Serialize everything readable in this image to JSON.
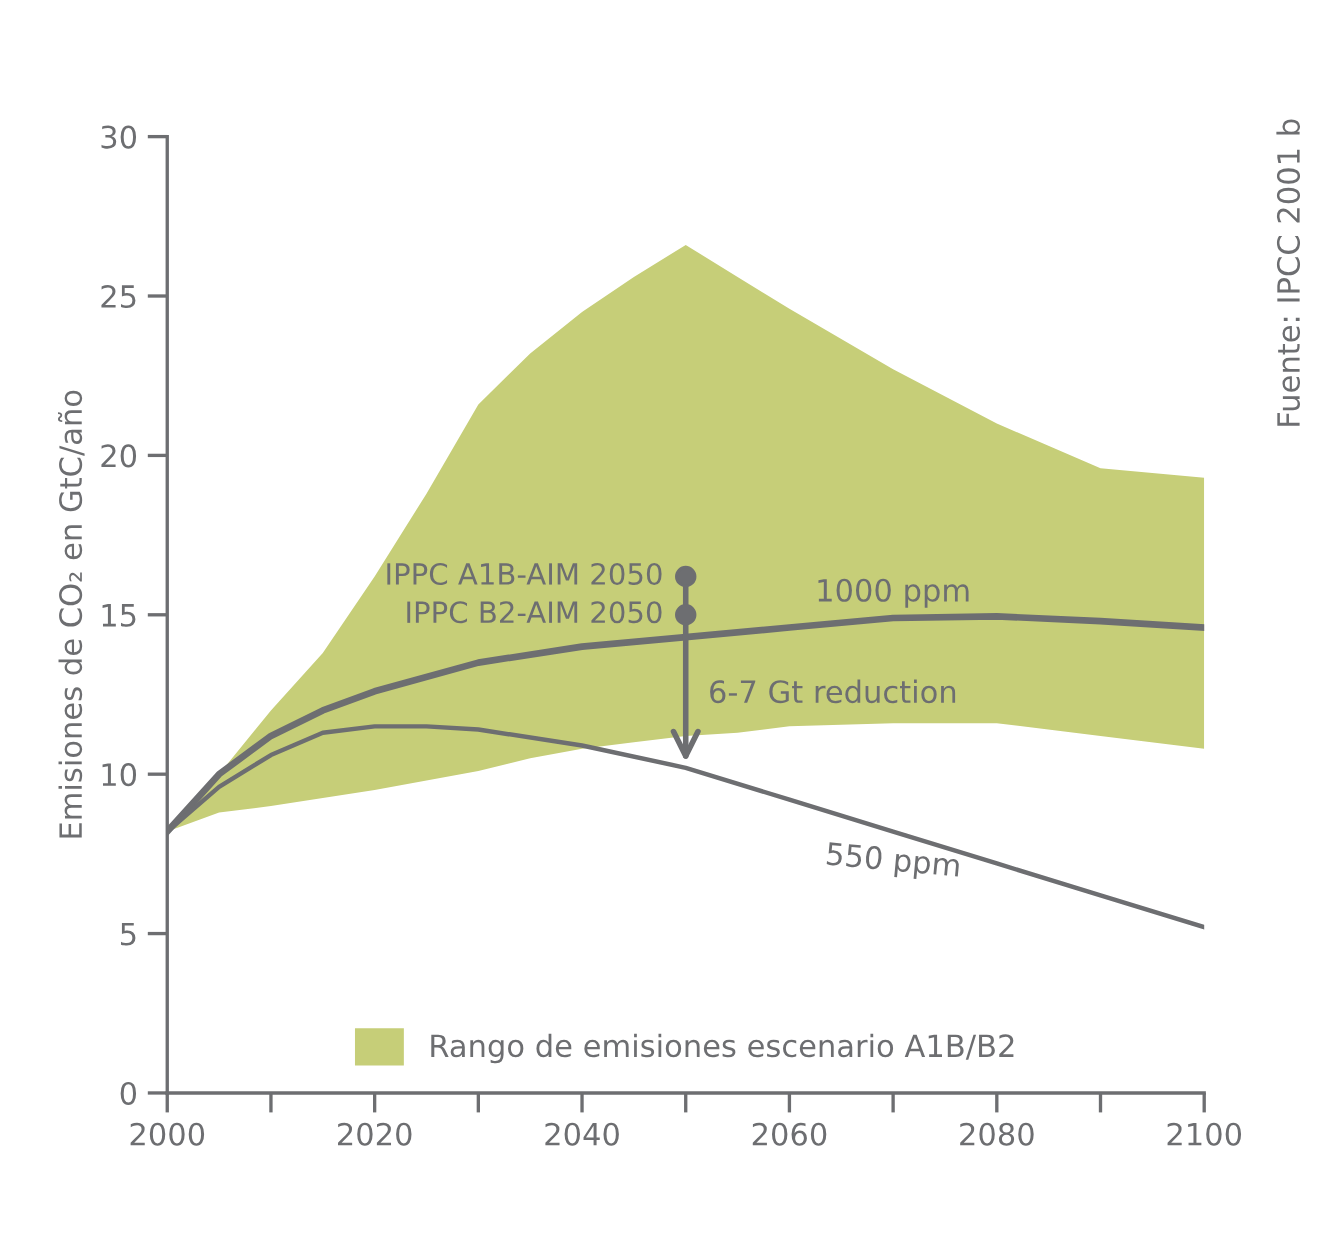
{
  "chart_data": {
    "type": "line",
    "ylabel": "Emisiones de CO₂ en GtC/año",
    "xlim": [
      2000,
      2100
    ],
    "ylim": [
      0,
      30
    ],
    "xticks": [
      2000,
      {
        "value": 2010,
        "label": null
      },
      2020,
      {
        "value": 2030,
        "label": null
      },
      2040,
      {
        "value": 2050,
        "label": null
      },
      2060,
      {
        "value": 2070,
        "label": null
      },
      2080,
      {
        "value": 2090,
        "label": null
      },
      2100
    ],
    "yticks": [
      0,
      5,
      10,
      15,
      20,
      25,
      30
    ],
    "grid": false,
    "legend": "bottom",
    "series": [
      {
        "name": "Rango de emisiones escenario A1B/B2",
        "type": "area",
        "color": "#c6ce78",
        "x": [
          2000,
          2005,
          2010,
          2015,
          2020,
          2025,
          2030,
          2035,
          2040,
          2045,
          2050,
          2055,
          2060,
          2070,
          2080,
          2090,
          2100
        ],
        "values": [
          null,
          null,
          null,
          null,
          null,
          null,
          null,
          null,
          null,
          null,
          null,
          null,
          null,
          null,
          null,
          null,
          null
        ],
        "upper": [
          8.2,
          10.0,
          12.0,
          13.8,
          16.2,
          18.8,
          21.6,
          23.2,
          24.5,
          25.6,
          26.6,
          25.6,
          24.6,
          22.7,
          21.0,
          19.6,
          19.3
        ],
        "lower": [
          8.2,
          8.8,
          9.0,
          9.25,
          9.5,
          9.8,
          10.1,
          10.5,
          10.8,
          11.0,
          11.2,
          11.3,
          11.5,
          11.6,
          11.6,
          11.2,
          10.8
        ]
      },
      {
        "name": "1000 ppm",
        "color": "#6d6e71",
        "x": [
          2000,
          2005,
          2010,
          2015,
          2020,
          2030,
          2040,
          2050,
          2060,
          2070,
          2080,
          2090,
          2100
        ],
        "values": [
          8.2,
          10.0,
          11.2,
          12.0,
          12.6,
          13.5,
          14.0,
          14.3,
          14.6,
          14.9,
          14.95,
          14.8,
          14.6
        ]
      },
      {
        "name": "550 ppm",
        "color": "#6d6e71",
        "x": [
          2000,
          2005,
          2010,
          2015,
          2020,
          2025,
          2030,
          2040,
          2050,
          2060,
          2070,
          2080,
          2090,
          2100
        ],
        "values": [
          8.2,
          9.6,
          10.6,
          11.3,
          11.5,
          11.5,
          11.4,
          10.9,
          10.2,
          9.2,
          8.2,
          7.2,
          6.2,
          5.2
        ]
      },
      {
        "type": "scatter",
        "color": "#6d6e71",
        "x": [
          2050,
          2050
        ],
        "values": [
          16.2,
          15.0
        ]
      }
    ],
    "annotations": [
      "IPPC A1B-AIM 2050",
      "IPPC B2-AIM 2050",
      "6-7 Gt reduction",
      "Fuente: IPCC 2001 b"
    ]
  }
}
